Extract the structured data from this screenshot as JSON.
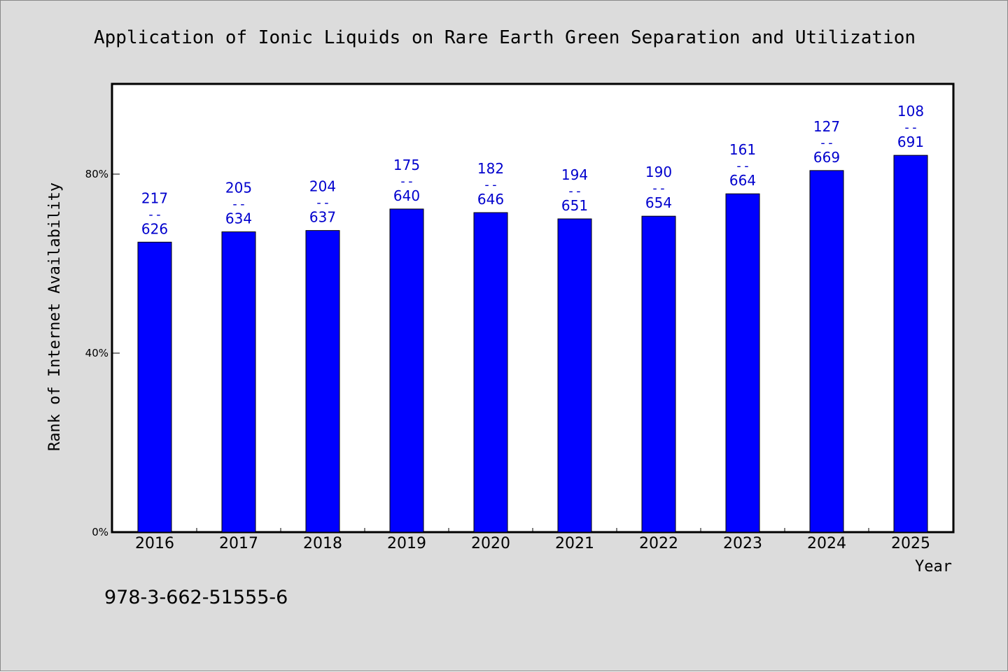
{
  "chart_data": {
    "type": "bar",
    "title": "Application of Ionic Liquids on Rare Earth Green Separation and Utilization",
    "xlabel": "Year",
    "ylabel": "Rank of Internet Availability",
    "categories": [
      "2016",
      "2017",
      "2018",
      "2019",
      "2020",
      "2021",
      "2022",
      "2023",
      "2024",
      "2025"
    ],
    "values": [
      64.8,
      67.1,
      67.4,
      72.2,
      71.4,
      70.0,
      70.6,
      75.6,
      80.8,
      84.2
    ],
    "labels_top": [
      "217",
      "205",
      "204",
      "175",
      "182",
      "194",
      "190",
      "161",
      "127",
      "108"
    ],
    "labels_bottom": [
      "626",
      "634",
      "637",
      "640",
      "646",
      "651",
      "654",
      "664",
      "669",
      "691"
    ],
    "label_separator": "--",
    "yticks": [
      "0%",
      "40%",
      "80%"
    ],
    "ytick_values": [
      0,
      40,
      80
    ],
    "ylim": [
      0,
      100
    ],
    "grid": false,
    "bar_color": "#0000ff",
    "label_color": "#0000cd",
    "plot_background": "#ffffff",
    "page_background": "#dcdcdc"
  },
  "footer": {
    "isbn": "978-3-662-51555-6"
  }
}
